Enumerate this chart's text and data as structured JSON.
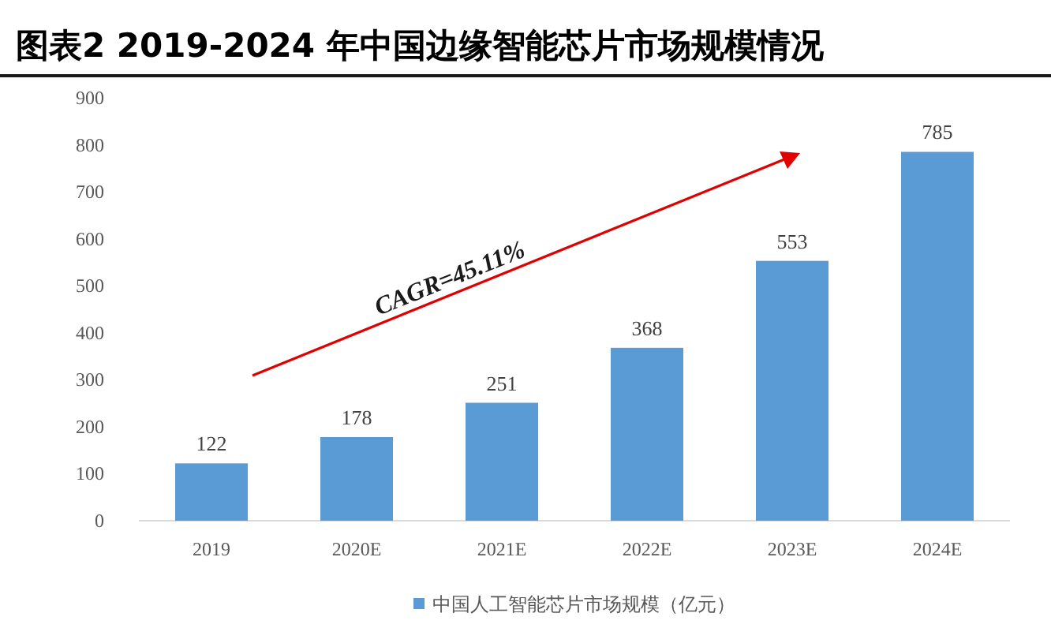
{
  "chart_data": {
    "type": "bar",
    "title": "图表2 2019-2024 年中国边缘智能芯片市场规模情况",
    "categories": [
      "2019",
      "2020E",
      "2021E",
      "2022E",
      "2023E",
      "2024E"
    ],
    "series": [
      {
        "name": "中国人工智能芯片市场规模（亿元）",
        "color": "#5b9bd5",
        "values": [
          122,
          178,
          251,
          368,
          553,
          785
        ]
      }
    ],
    "ylim": [
      0,
      900
    ],
    "yticks": [
      0,
      100,
      200,
      300,
      400,
      500,
      600,
      700,
      800,
      900
    ],
    "data_labels": true,
    "legend": "bottom",
    "grid": false,
    "annotations": [
      "CAGR=45.11%"
    ]
  }
}
